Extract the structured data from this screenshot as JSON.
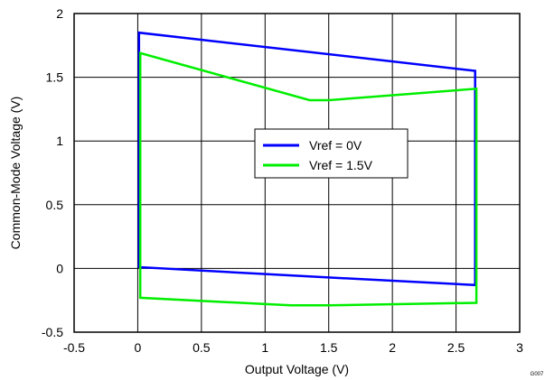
{
  "chart_data": {
    "type": "line",
    "xlabel": "Output Voltage (V)",
    "ylabel": "Common-Mode Voltage (V)",
    "xlim": [
      -0.5,
      3
    ],
    "ylim": [
      -0.5,
      2
    ],
    "x_ticks": [
      -0.5,
      0,
      0.5,
      1,
      1.5,
      2,
      2.5,
      3
    ],
    "y_ticks": [
      -0.5,
      0,
      0.5,
      1,
      1.5,
      2
    ],
    "x_tick_labels": [
      "-0.5",
      "0",
      "0.5",
      "1",
      "1.5",
      "2",
      "2.5",
      "3"
    ],
    "y_tick_labels": [
      "-0.5",
      "0",
      "0.5",
      "1",
      "1.5",
      "2"
    ],
    "grid": true,
    "legend_position": "center",
    "figure_id": "G007",
    "series": [
      {
        "name": "Vref = 0V",
        "color": "#0000ff",
        "points": [
          [
            0.01,
            0.73
          ],
          [
            0.01,
            1.85
          ],
          [
            2.65,
            1.55
          ],
          [
            2.65,
            -0.13
          ],
          [
            1.3,
            -0.06
          ],
          [
            0.01,
            0.01
          ],
          [
            0.01,
            0.73
          ]
        ]
      },
      {
        "name": "Vref = 1.5V",
        "color": "#00ee00",
        "points": [
          [
            0.02,
            0.65
          ],
          [
            0.02,
            1.69
          ],
          [
            1.35,
            1.32
          ],
          [
            1.5,
            1.32
          ],
          [
            2.66,
            1.41
          ],
          [
            2.66,
            -0.27
          ],
          [
            1.5,
            -0.29
          ],
          [
            1.2,
            -0.29
          ],
          [
            0.02,
            -0.23
          ],
          [
            0.02,
            0.65
          ]
        ]
      }
    ]
  }
}
